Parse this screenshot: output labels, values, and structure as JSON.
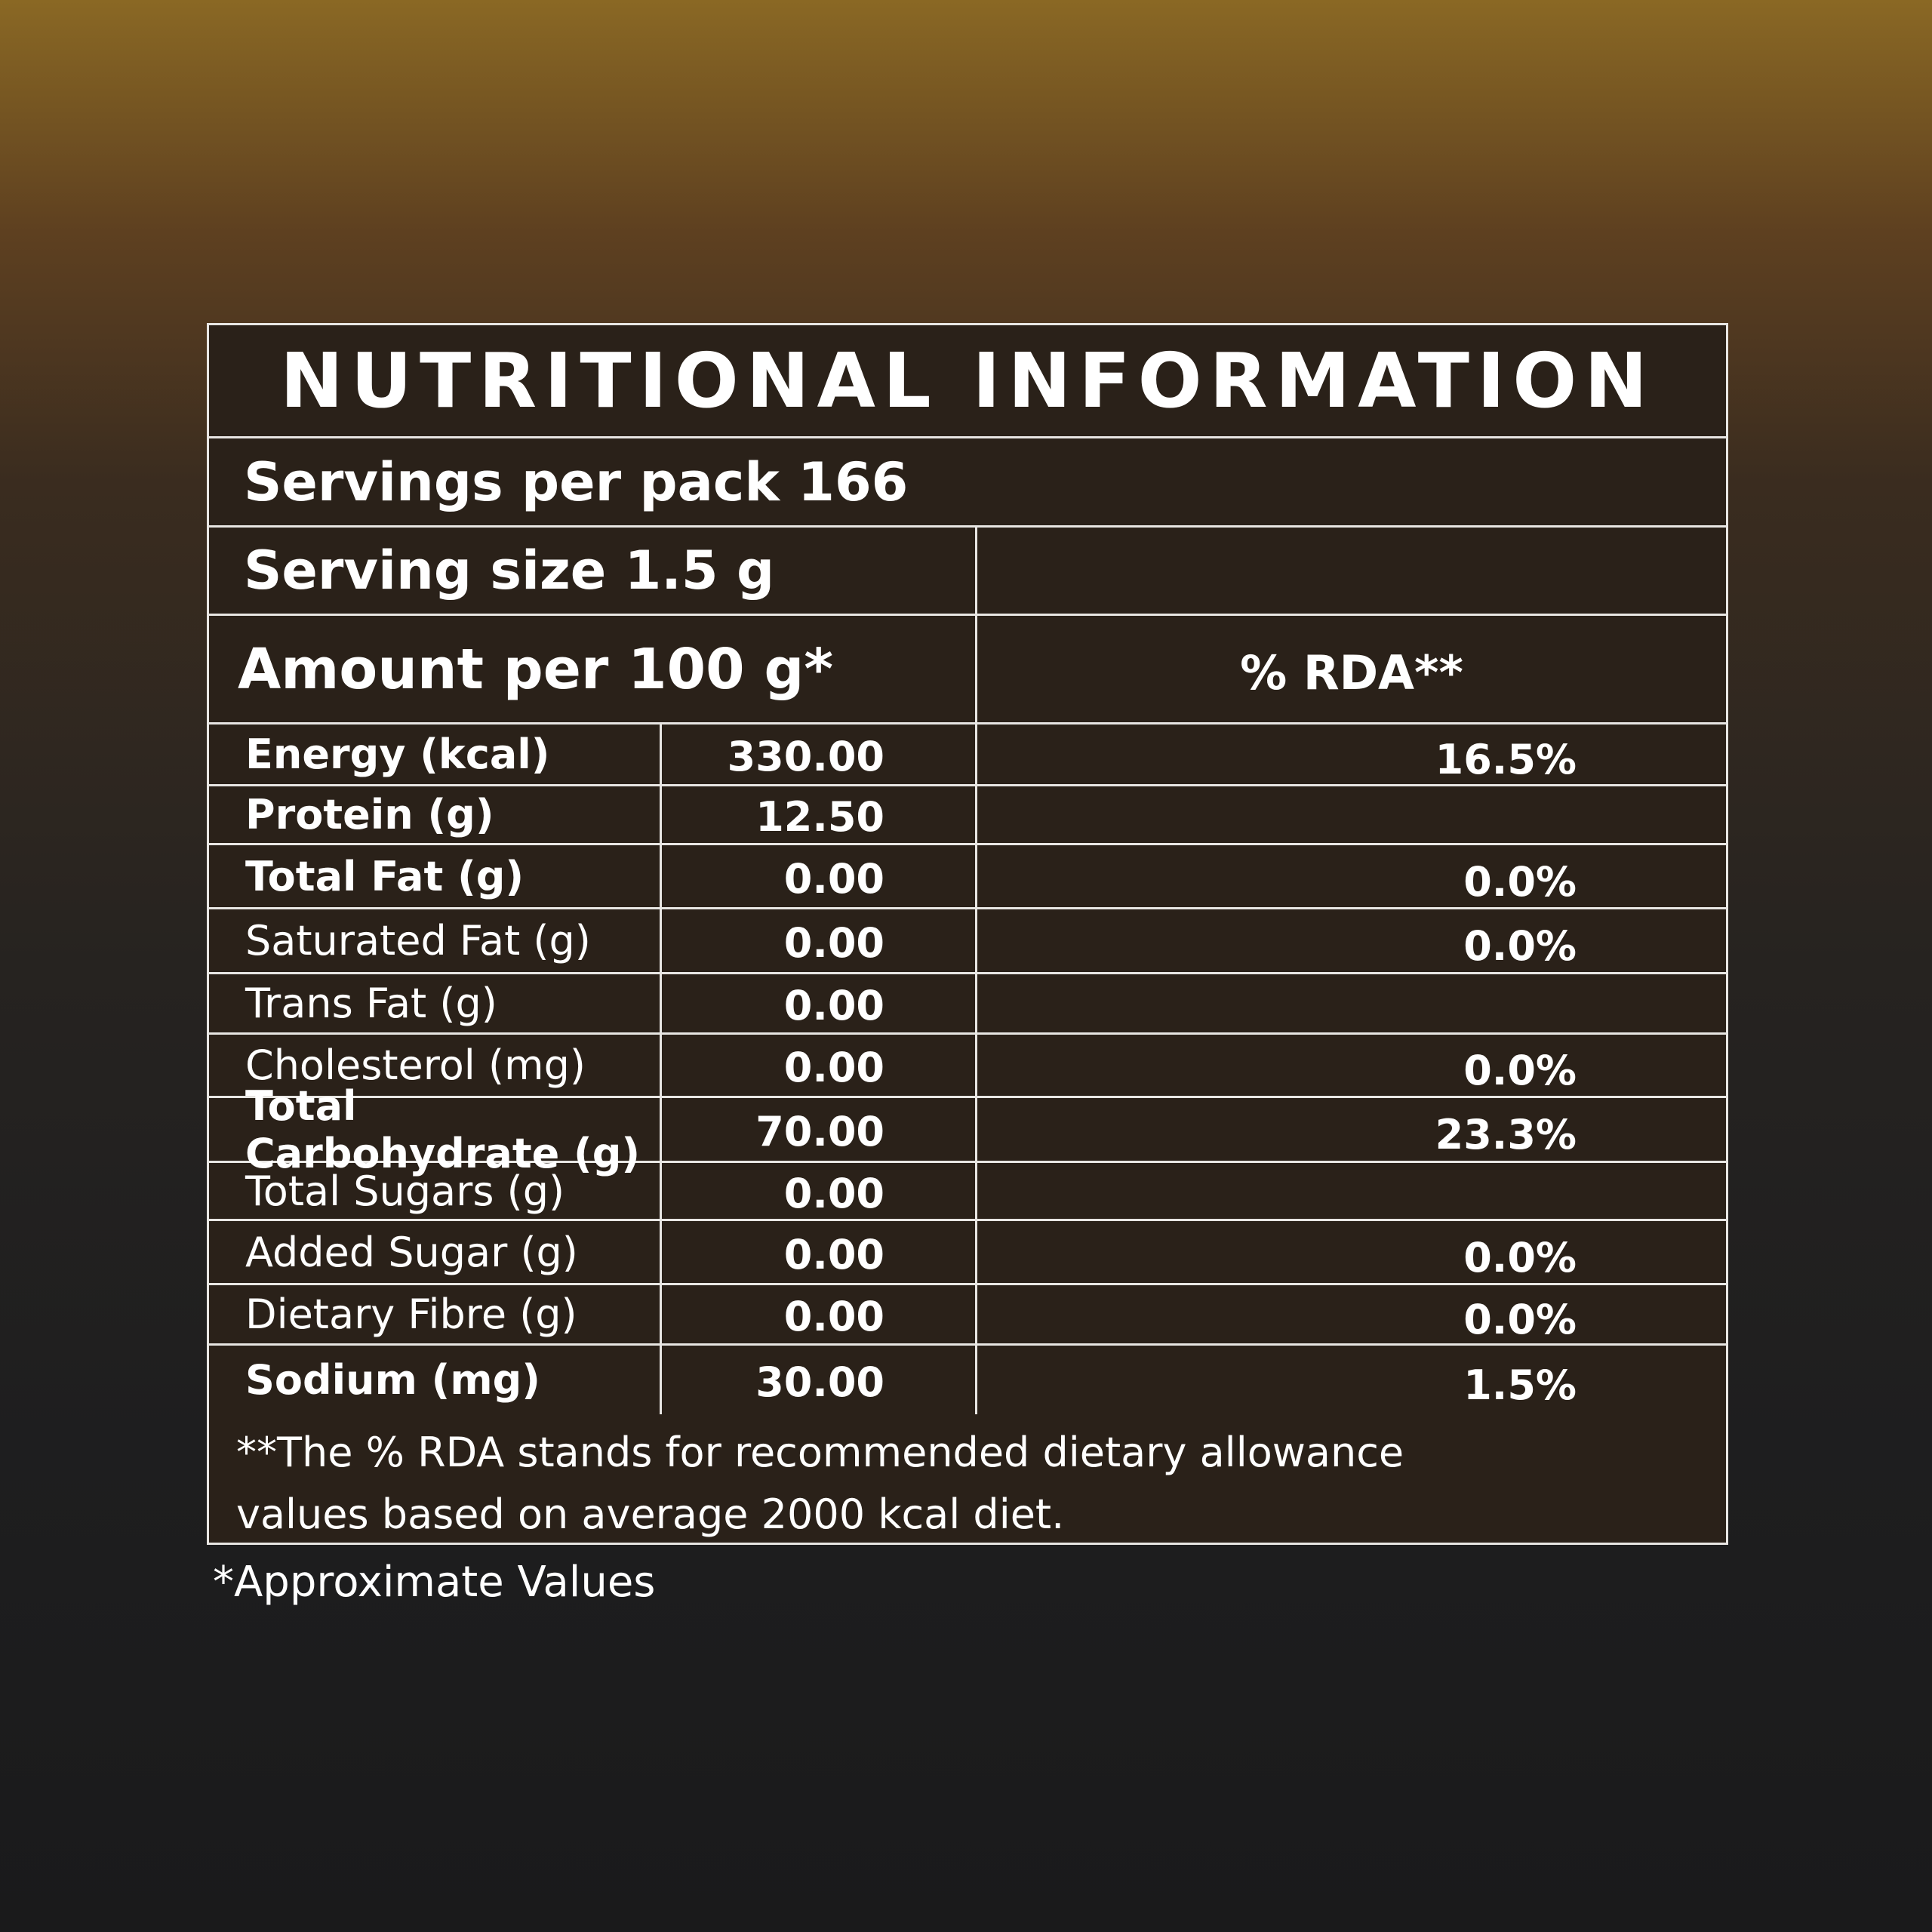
{
  "title": "NUTRITIONAL INFORMATION",
  "servings_per_pack": "Servings per pack 166",
  "serving_size": "Serving size 1.5 g",
  "amount_header": "Amount per 100 g*",
  "rda_header": "% RDA**",
  "rows": [
    {
      "label": "Energy (kcal)",
      "value": "330.00",
      "rda": "16.5%",
      "bold": true
    },
    {
      "label": "Protein (g)",
      "value": "12.50",
      "rda": "",
      "bold": true
    },
    {
      "label": "Total Fat (g)",
      "value": "0.00",
      "rda": "0.0%",
      "bold": true
    },
    {
      "label": "Saturated Fat (g)",
      "value": "0.00",
      "rda": "0.0%",
      "bold": false
    },
    {
      "label": "Trans Fat (g)",
      "value": "0.00",
      "rda": "",
      "bold": false
    },
    {
      "label": "Cholesterol (mg)",
      "value": "0.00",
      "rda": "0.0%",
      "bold": false
    },
    {
      "label": "Total Carbohydrate (g)",
      "value": "70.00",
      "rda": "23.3%",
      "bold": true
    },
    {
      "label": "Total Sugars (g)",
      "value": "0.00",
      "rda": "",
      "bold": false
    },
    {
      "label": "Added  Sugar (g)",
      "value": "0.00",
      "rda": "0.0%",
      "bold": false
    },
    {
      "label": "Dietary Fibre (g)",
      "value": "0.00",
      "rda": "0.0%",
      "bold": false
    },
    {
      "label": "Sodium (mg)",
      "value": "30.00",
      "rda": "1.5%",
      "bold": true
    }
  ],
  "footnote_line1": "**The % RDA stands for recommended dietary allowance",
  "footnote_line2": "values based on average 2000 kcal diet.",
  "approx_note": "*Approximate Values"
}
